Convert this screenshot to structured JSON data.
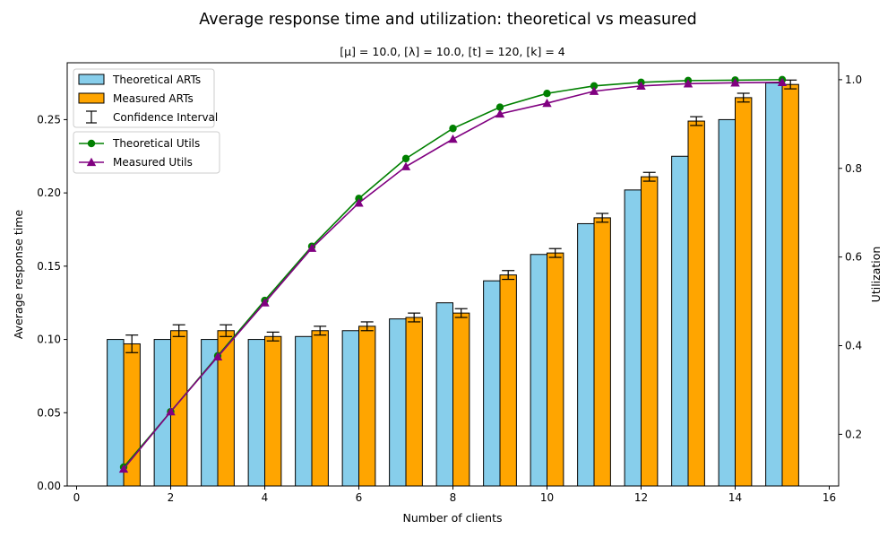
{
  "chart_data": {
    "type": "bar",
    "title": "Average response time and utilization: theoretical vs measured",
    "subtitle": "[μ] = 10.0, [λ] = 10.0, [t] = 120, [k] = 4",
    "xlabel": "Number of clients",
    "ylabel": "Average response time",
    "y2label": "Utilization",
    "xlim": [
      -0.2,
      16.2
    ],
    "ylim": [
      0,
      0.2888
    ],
    "y2lim": [
      0.0834,
      1.0382
    ],
    "xticks": [
      0,
      2,
      4,
      6,
      8,
      10,
      12,
      14,
      16
    ],
    "yticks": [
      0.0,
      0.05,
      0.1,
      0.15,
      0.2,
      0.25
    ],
    "y2ticks": [
      0.2,
      0.4,
      0.6,
      0.8,
      1.0
    ],
    "grid": false,
    "legend_placement": "upper-left",
    "x": [
      1,
      2,
      3,
      4,
      5,
      6,
      7,
      8,
      9,
      10,
      11,
      12,
      13,
      14,
      15
    ],
    "bar_series": [
      {
        "name": "Theoretical ARTs",
        "color": "#87ceeb",
        "values": [
          0.1,
          0.1,
          0.1,
          0.1,
          0.102,
          0.106,
          0.114,
          0.125,
          0.14,
          0.158,
          0.179,
          0.202,
          0.225,
          0.25,
          0.275
        ]
      },
      {
        "name": "Measured ARTs",
        "color": "#ffa500",
        "values": [
          0.097,
          0.106,
          0.106,
          0.102,
          0.106,
          0.109,
          0.115,
          0.118,
          0.144,
          0.159,
          0.183,
          0.211,
          0.249,
          0.265,
          0.274
        ],
        "error": [
          0.006,
          0.004,
          0.004,
          0.003,
          0.003,
          0.003,
          0.003,
          0.003,
          0.003,
          0.003,
          0.003,
          0.003,
          0.003,
          0.003,
          0.003
        ]
      }
    ],
    "errorbar_label": "Confidence Interval",
    "line_series": [
      {
        "name": "Theoretical Utils",
        "color": "#008000",
        "marker": "circle",
        "values": [
          0.126,
          0.251,
          0.377,
          0.502,
          0.624,
          0.732,
          0.822,
          0.89,
          0.938,
          0.969,
          0.986,
          0.994,
          0.998,
          0.999,
          1.0
        ]
      },
      {
        "name": "Measured Utils",
        "color": "#800080",
        "marker": "triangle",
        "values": [
          0.122,
          0.251,
          0.375,
          0.497,
          0.62,
          0.722,
          0.804,
          0.866,
          0.923,
          0.947,
          0.974,
          0.986,
          0.991,
          0.993,
          0.994
        ]
      }
    ]
  }
}
